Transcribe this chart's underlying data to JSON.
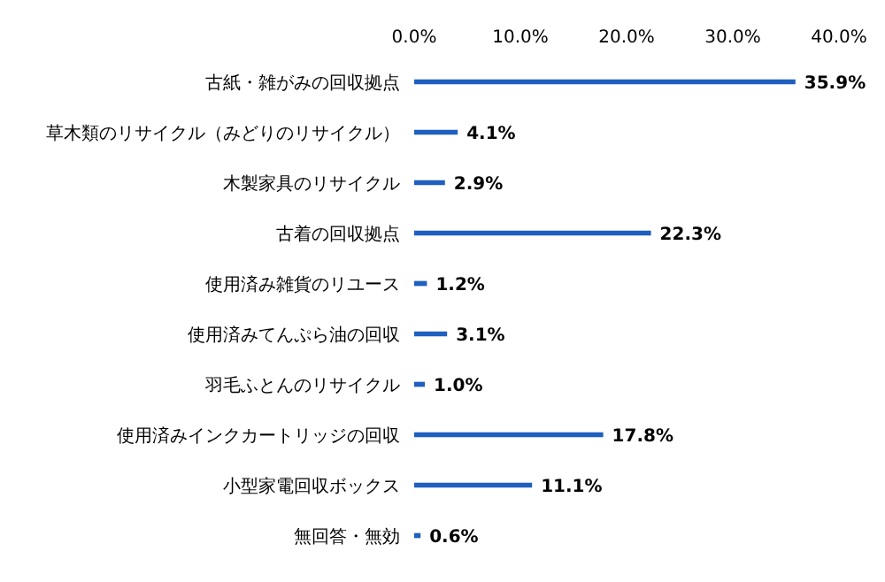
{
  "chart_data": {
    "type": "bar",
    "orientation": "horizontal",
    "categories": [
      "古紙・雑がみの回収拠点",
      "草木類のリサイクル（みどりのリサイクル）",
      "木製家具のリサイクル",
      "古着の回収拠点",
      "使用済み雑貨のリユース",
      "使用済みてんぷら油の回収",
      "羽毛ふとんのリサイクル",
      "使用済みインクカートリッジの回収",
      "小型家電回収ボックス",
      "無回答・無効"
    ],
    "values": [
      35.9,
      4.1,
      2.9,
      22.3,
      1.2,
      3.1,
      1.0,
      17.8,
      11.1,
      0.6
    ],
    "value_labels": [
      "35.9%",
      "4.1%",
      "2.9%",
      "22.3%",
      "1.2%",
      "3.1%",
      "1.0%",
      "17.8%",
      "11.1%",
      "0.6%"
    ],
    "color": "#1f5fbf",
    "xlim": [
      0,
      40
    ],
    "xticks": [
      {
        "value": 0,
        "label": "0.0%"
      },
      {
        "value": 10,
        "label": "10.0%"
      },
      {
        "value": 20,
        "label": "20.0%"
      },
      {
        "value": 30,
        "label": "30.0%"
      },
      {
        "value": 40,
        "label": "40.0%"
      }
    ],
    "grid": false,
    "legend": false
  }
}
